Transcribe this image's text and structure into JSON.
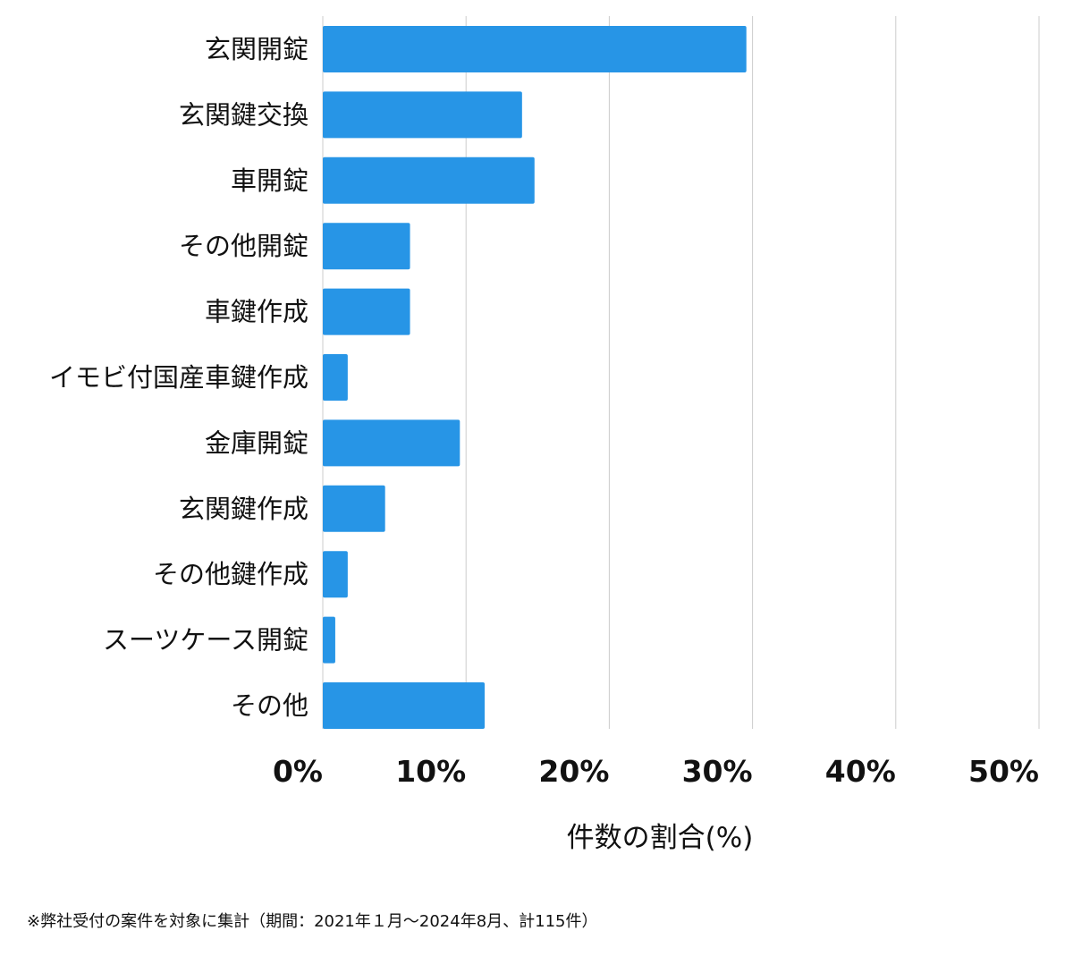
{
  "chart_data": {
    "type": "bar",
    "orientation": "horizontal",
    "categories": [
      "玄関開錠",
      "玄関鍵交換",
      "車開錠",
      "その他開錠",
      "車鍵作成",
      "イモビ付国産車鍵作成",
      "金庫開錠",
      "玄関鍵作成",
      "その他鍵作成",
      "スーツケース開錠",
      "その他"
    ],
    "values": [
      29.57,
      13.91,
      14.78,
      6.09,
      6.09,
      1.74,
      9.57,
      4.35,
      1.74,
      0.87,
      11.3
    ],
    "xlabel": "件数の割合(%)",
    "ylabel": "",
    "xlim": [
      0,
      50
    ],
    "xticks": [
      0,
      10,
      20,
      30,
      40,
      50
    ],
    "xtick_labels": [
      "0%",
      "10%",
      "20%",
      "30%",
      "40%",
      "50%"
    ],
    "grid": true,
    "bar_color": "#2795e6",
    "grid_color": "#cccccc"
  },
  "footnote": "※弊社受付の案件を対象に集計（期間：2021年１月〜2024年8月、計115件）"
}
